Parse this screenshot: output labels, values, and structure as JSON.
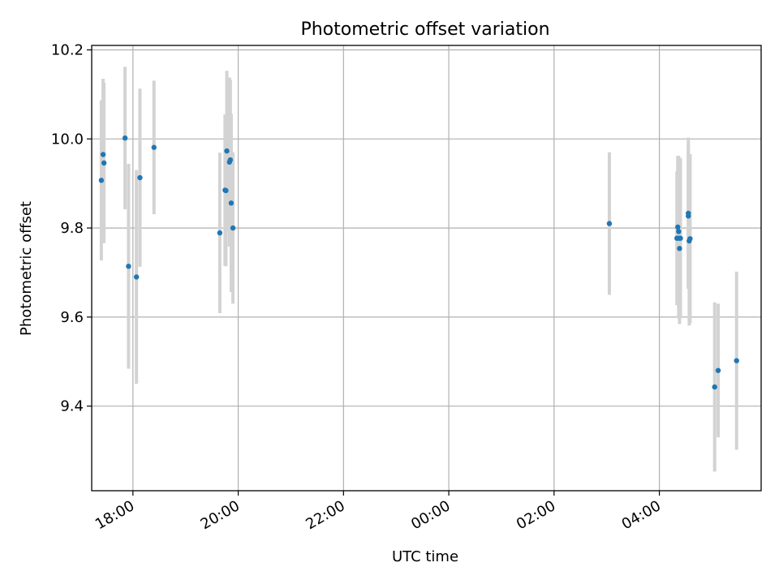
{
  "chart_data": {
    "type": "scatter",
    "title": "Photometric offset variation",
    "xlabel": "UTC time",
    "ylabel": "Photometric offset",
    "x_unit": "UTC time (HH:MM)",
    "x_ticks": [
      "18:00",
      "20:00",
      "22:00",
      "00:00",
      "02:00",
      "04:00"
    ],
    "y_ticks": [
      "9.4",
      "9.6",
      "9.8",
      "10.0",
      "10.2"
    ],
    "xlim": [
      "17:13",
      "05:56"
    ],
    "ylim": [
      9.21,
      10.21
    ],
    "grid": true,
    "colors": {
      "points": "#1f77b4",
      "errorbars": "#d3d3d3",
      "grid": "#b0b0b0",
      "frame": "#000000"
    },
    "series": [
      {
        "points": [
          {
            "x": "17:24",
            "y": 9.907,
            "err": 0.18
          },
          {
            "x": "17:26",
            "y": 9.965,
            "err": 0.17
          },
          {
            "x": "17:27",
            "y": 9.946,
            "err": 0.18
          },
          {
            "x": "17:51",
            "y": 10.002,
            "err": 0.16
          },
          {
            "x": "17:55",
            "y": 9.714,
            "err": 0.23
          },
          {
            "x": "18:04",
            "y": 9.69,
            "err": 0.24
          },
          {
            "x": "18:08",
            "y": 9.913,
            "err": 0.2
          },
          {
            "x": "18:24",
            "y": 9.981,
            "err": 0.15
          },
          {
            "x": "19:39",
            "y": 9.789,
            "err": 0.18
          },
          {
            "x": "19:45",
            "y": 9.885,
            "err": 0.17
          },
          {
            "x": "19:46",
            "y": 9.884,
            "err": 0.17
          },
          {
            "x": "19:47",
            "y": 9.973,
            "err": 0.18
          },
          {
            "x": "19:50",
            "y": 9.948,
            "err": 0.19
          },
          {
            "x": "19:51",
            "y": 9.953,
            "err": 0.18
          },
          {
            "x": "19:52",
            "y": 9.856,
            "err": 0.2
          },
          {
            "x": "19:54",
            "y": 9.8,
            "err": 0.17
          },
          {
            "x": "03:03",
            "y": 9.81,
            "err": 0.16
          },
          {
            "x": "04:20",
            "y": 9.777,
            "err": 0.15
          },
          {
            "x": "04:21",
            "y": 9.802,
            "err": 0.16
          },
          {
            "x": "04:22",
            "y": 9.792,
            "err": 0.17
          },
          {
            "x": "04:22",
            "y": 9.777,
            "err": 0.18
          },
          {
            "x": "04:23",
            "y": 9.754,
            "err": 0.17
          },
          {
            "x": "04:24",
            "y": 9.777,
            "err": 0.18
          },
          {
            "x": "04:33",
            "y": 9.833,
            "err": 0.17
          },
          {
            "x": "04:33",
            "y": 9.827,
            "err": 0.16
          },
          {
            "x": "04:34",
            "y": 9.771,
            "err": 0.19
          },
          {
            "x": "04:35",
            "y": 9.776,
            "err": 0.19
          },
          {
            "x": "05:03",
            "y": 9.443,
            "err": 0.19
          },
          {
            "x": "05:07",
            "y": 9.48,
            "err": 0.15
          },
          {
            "x": "05:28",
            "y": 9.502,
            "err": 0.2
          }
        ]
      }
    ]
  }
}
